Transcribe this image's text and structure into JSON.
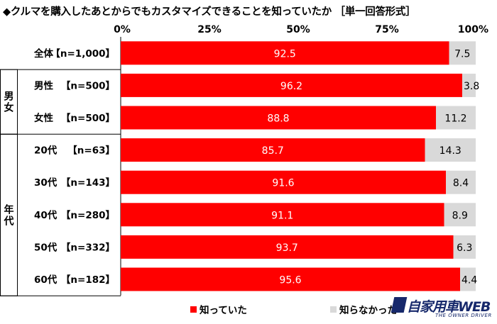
{
  "title": "◆クルマを購入したあとからでもカスタマイズできることを知っていたか ［単一回答形式］",
  "brand": {
    "name": "自家用車WEB",
    "tagline": "THE OWNER DRIVER"
  },
  "colors": {
    "knew": "#ff0000",
    "didnt_know": "#d9d9d9"
  },
  "chart_data": {
    "type": "bar",
    "stacked": true,
    "orientation": "horizontal",
    "x_ticks": [
      "0%",
      "25%",
      "50%",
      "75%",
      "100%"
    ],
    "xlim": [
      0,
      100
    ],
    "group_labels": [
      "男女",
      "年代"
    ],
    "rows": [
      {
        "label": "全体",
        "n": "【n=1,000】",
        "group": null
      },
      {
        "label": "男性",
        "n": "【n=500】",
        "group": "男女"
      },
      {
        "label": "女性",
        "n": "【n=500】",
        "group": "男女"
      },
      {
        "label": "20代",
        "n": "【n=63】",
        "group": "年代"
      },
      {
        "label": "30代",
        "n": "【n=143】",
        "group": "年代"
      },
      {
        "label": "40代",
        "n": "【n=280】",
        "group": "年代"
      },
      {
        "label": "50代",
        "n": "【n=332】",
        "group": "年代"
      },
      {
        "label": "60代",
        "n": "【n=182】",
        "group": "年代"
      }
    ],
    "series": [
      {
        "name": "知っていた",
        "color": "#ff0000",
        "values": [
          92.5,
          96.2,
          88.8,
          85.7,
          91.6,
          91.1,
          93.7,
          95.6
        ]
      },
      {
        "name": "知らなかった",
        "color": "#d9d9d9",
        "values": [
          7.5,
          3.8,
          11.2,
          14.3,
          8.4,
          8.9,
          6.3,
          4.4
        ]
      }
    ],
    "legend_position": "bottom"
  }
}
